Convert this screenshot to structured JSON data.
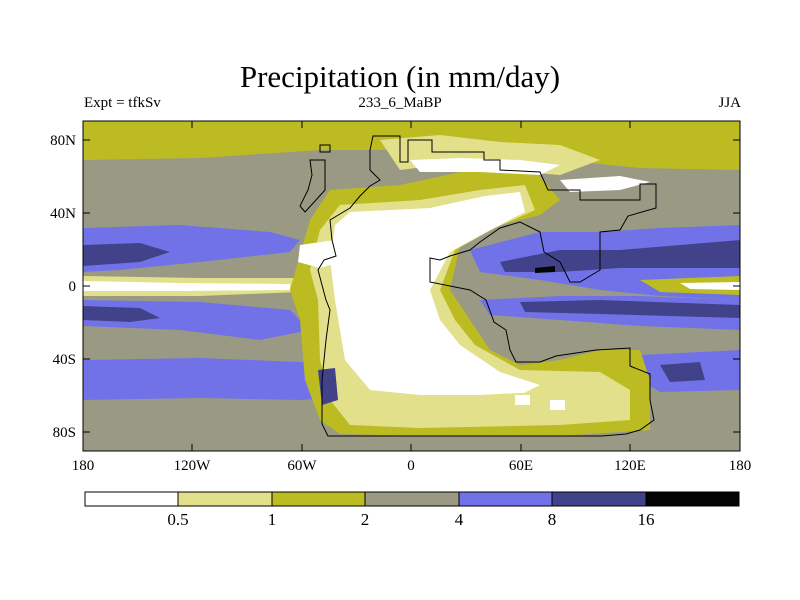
{
  "title": "Precipitation (in mm/day)",
  "left_label": "Expt = tfkSv",
  "center_label": "233_6_MaBP",
  "right_label": "JJA",
  "y_ticks": [
    "80N",
    "40N",
    "0",
    "40S",
    "80S"
  ],
  "x_ticks": [
    "180",
    "120W",
    "60W",
    "0",
    "60E",
    "120E",
    "180"
  ],
  "colorbar": {
    "levels": [
      "0.5",
      "1",
      "2",
      "4",
      "8",
      "16"
    ],
    "colors": [
      "#ffffff",
      "#e2e08a",
      "#bcbc22",
      "#9a9a84",
      "#7272e8",
      "#42428a",
      "#050505"
    ]
  },
  "map_colors": {
    "white": "#ffffff",
    "pale_yellow": "#e2e08a",
    "olive": "#bcbc22",
    "gray": "#9a9a84",
    "blue": "#7272e8",
    "dark_blue": "#42428a",
    "black": "#050505"
  }
}
